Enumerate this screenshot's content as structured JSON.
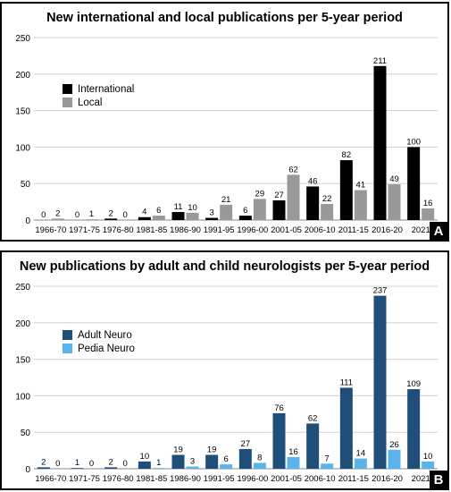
{
  "chart_data": [
    {
      "type": "bar",
      "panel": "A",
      "title": "New international and local publications per 5-year period",
      "categories": [
        "1966-70",
        "1971-75",
        "1976-80",
        "1981-85",
        "1986-90",
        "1991-95",
        "1996-00",
        "2001-05",
        "2006-10",
        "2011-15",
        "2016-20",
        "2021"
      ],
      "series": [
        {
          "name": "International",
          "color": "#000000",
          "values": [
            0,
            0,
            2,
            4,
            11,
            3,
            6,
            27,
            46,
            82,
            211,
            100
          ]
        },
        {
          "name": "Local",
          "color": "#999999",
          "values": [
            2,
            1,
            0,
            6,
            10,
            21,
            29,
            62,
            22,
            41,
            49,
            16
          ]
        }
      ],
      "ylim": [
        0,
        250
      ],
      "yticks": [
        0,
        50,
        100,
        150,
        200,
        250
      ],
      "grid": true,
      "legend_position": "top-left"
    },
    {
      "type": "bar",
      "panel": "B",
      "title": "New publications by adult and child neurologists per 5-year period",
      "categories": [
        "1966-70",
        "1971-75",
        "1976-80",
        "1981-85",
        "1986-90",
        "1991-95",
        "1996-00",
        "2001-05",
        "2006-10",
        "2011-15",
        "2016-20",
        "2021"
      ],
      "series": [
        {
          "name": "Adult Neuro",
          "color": "#1f4e79",
          "values": [
            2,
            1,
            2,
            10,
            19,
            19,
            27,
            76,
            62,
            111,
            237,
            109
          ]
        },
        {
          "name": "Pedia Neuro",
          "color": "#5ab4ea",
          "values": [
            0,
            0,
            0,
            1,
            3,
            6,
            8,
            16,
            7,
            14,
            26,
            10
          ]
        }
      ],
      "ylim": [
        0,
        250
      ],
      "yticks": [
        0,
        50,
        100,
        150,
        200,
        250
      ],
      "grid": true,
      "legend_position": "top-left"
    }
  ]
}
